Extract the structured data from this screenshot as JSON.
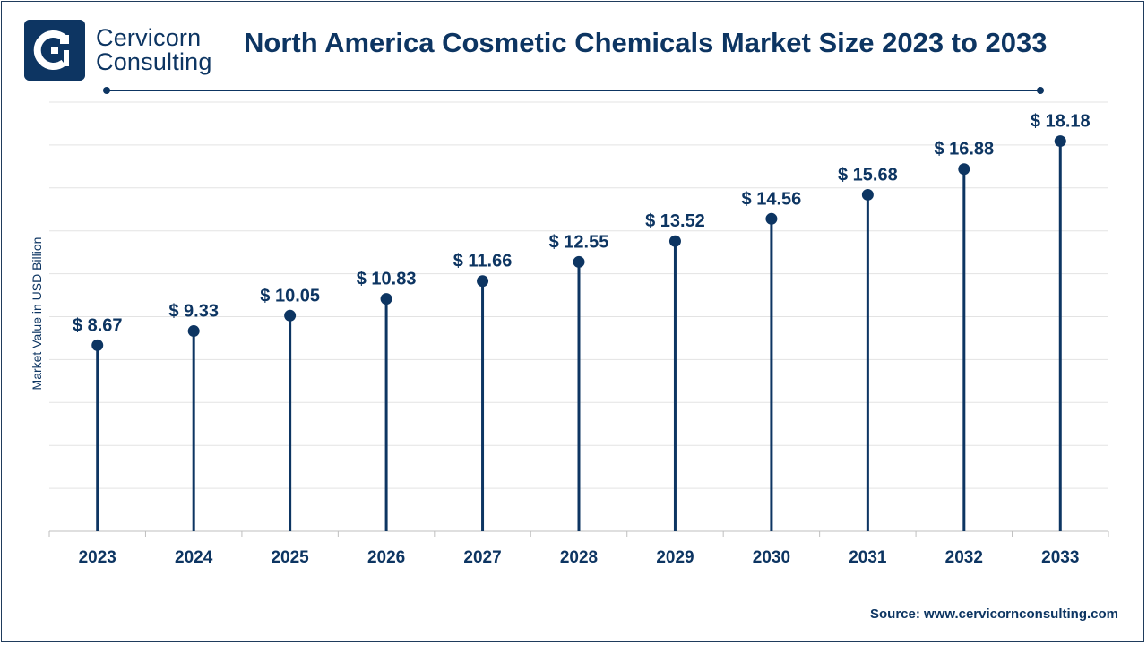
{
  "brand": {
    "line1": "Cervicorn",
    "line2": "Consulting"
  },
  "colors": {
    "primary": "#0d3562",
    "grid": "#e3e3e3",
    "axis": "#bfbfbf"
  },
  "source": "Source: www.cervicornconsulting.com",
  "chart_data": {
    "type": "lollipop",
    "title": "North America Cosmetic Chemicals Market Size 2023 to 2033",
    "ylabel": "Market Value in USD Billion",
    "value_prefix": "$ ",
    "ylim": [
      0,
      20
    ],
    "grid": true,
    "categories": [
      "2023",
      "2024",
      "2025",
      "2026",
      "2027",
      "2028",
      "2029",
      "2030",
      "2031",
      "2032",
      "2033"
    ],
    "values": [
      8.67,
      9.33,
      10.05,
      10.83,
      11.66,
      12.55,
      13.52,
      14.56,
      15.68,
      16.88,
      18.18
    ]
  }
}
